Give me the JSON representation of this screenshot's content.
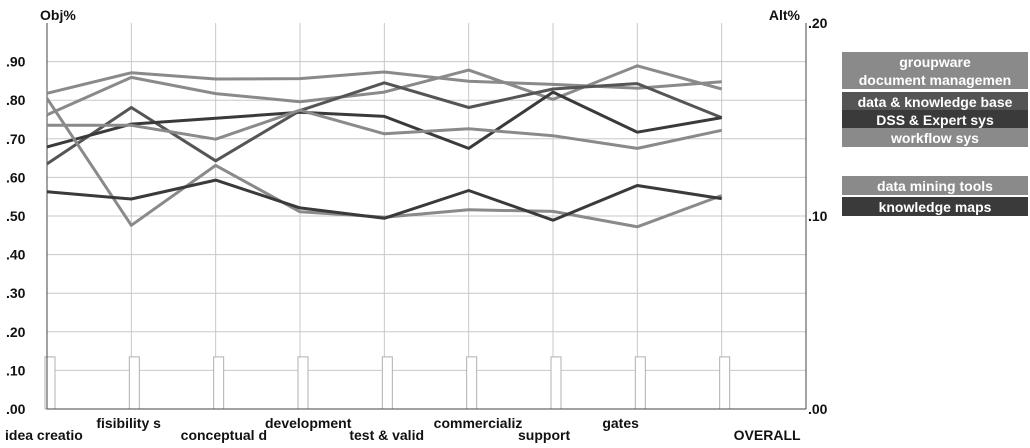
{
  "chart_data": {
    "type": "line",
    "left_axis_title": "Obj%",
    "right_axis_title": "Alt%",
    "left_ticks": [
      ".00",
      ".10",
      ".20",
      ".30",
      ".40",
      ".50",
      ".60",
      ".70",
      ".80",
      ".90"
    ],
    "right_ticks": [
      ".00",
      ".10",
      ".20"
    ],
    "ylim_left": [
      0,
      1.0
    ],
    "ylim_right": [
      0,
      0.2
    ],
    "categories": [
      "idea creatio",
      "fisibility s",
      "conceptual d",
      "development",
      "test & valid",
      "commercializ",
      "support",
      "gates",
      "OVERALL"
    ],
    "category_bar_values": [
      0.135,
      0.135,
      0.135,
      0.135,
      0.135,
      0.135,
      0.135,
      0.135,
      0.135
    ],
    "grid": true,
    "legend_position": "right",
    "series": [
      {
        "name": "groupware",
        "color": "#8a8a8a",
        "values": [
          0.818,
          0.871,
          0.855,
          0.856,
          0.873,
          0.849,
          0.841,
          0.831,
          0.848
        ]
      },
      {
        "name": "document managemen",
        "color": "#8a8a8a",
        "values": [
          0.762,
          0.859,
          0.817,
          0.796,
          0.821,
          0.878,
          0.802,
          0.889,
          0.829
        ]
      },
      {
        "name": "data & knowledge base",
        "color": "#555555",
        "values": [
          0.635,
          0.781,
          0.643,
          0.773,
          0.845,
          0.781,
          0.829,
          0.843,
          0.755
        ]
      },
      {
        "name": "DSS & Expert sys",
        "color": "#3a3a3a",
        "values": [
          0.679,
          0.738,
          0.753,
          0.769,
          0.758,
          0.675,
          0.821,
          0.717,
          0.755
        ]
      },
      {
        "name": "workflow sys",
        "color": "#8a8a8a",
        "values": [
          0.735,
          0.735,
          0.699,
          0.774,
          0.713,
          0.726,
          0.708,
          0.675,
          0.722
        ]
      },
      {
        "name": "data mining tools",
        "color": "#8a8a8a",
        "values": [
          0.805,
          0.476,
          0.631,
          0.511,
          0.497,
          0.516,
          0.512,
          0.472,
          0.553
        ]
      },
      {
        "name": "knowledge maps",
        "color": "#3a3a3a",
        "values": [
          0.563,
          0.544,
          0.593,
          0.521,
          0.494,
          0.566,
          0.489,
          0.579,
          0.545
        ]
      }
    ]
  }
}
